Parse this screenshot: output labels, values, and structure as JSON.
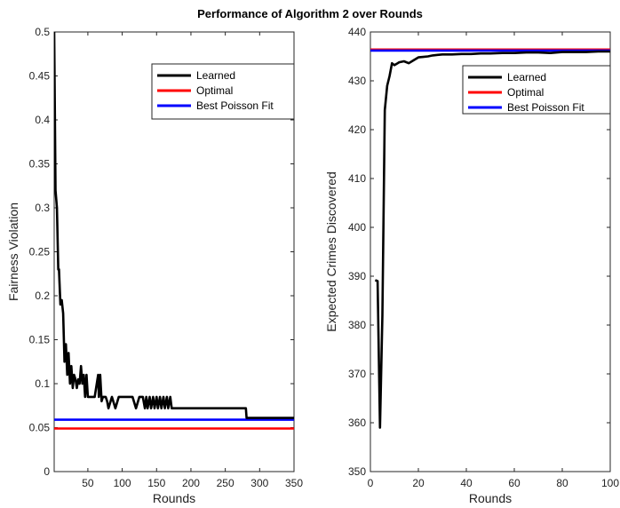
{
  "title": "Performance of Algorithm 2 over Rounds",
  "colors": {
    "learned": "#000000",
    "optimal": "#ff0000",
    "poisson": "#0000ff"
  },
  "chart_data": [
    {
      "type": "line",
      "xlabel": "Rounds",
      "ylabel": "Fairness Violation",
      "xlim": [
        1,
        350
      ],
      "ylim": [
        0,
        0.5
      ],
      "xticks": [
        50,
        100,
        150,
        200,
        250,
        300,
        350
      ],
      "yticks": [
        0,
        0.05,
        0.1,
        0.15,
        0.2,
        0.25,
        0.3,
        0.35,
        0.4,
        0.45,
        0.5
      ],
      "legend_position": "top-right",
      "series": [
        {
          "name": "Learned",
          "color": "#000000",
          "x": [
            1,
            3,
            5,
            7,
            8,
            10,
            12,
            14,
            16,
            18,
            20,
            22,
            24,
            26,
            28,
            30,
            32,
            34,
            36,
            38,
            40,
            42,
            44,
            46,
            48,
            50,
            55,
            60,
            65,
            66,
            68,
            70,
            72,
            74,
            76,
            78,
            80,
            85,
            90,
            95,
            100,
            105,
            110,
            115,
            120,
            125,
            130,
            133,
            135,
            137,
            140,
            142,
            145,
            147,
            150,
            152,
            155,
            157,
            160,
            162,
            165,
            167,
            170,
            172,
            175,
            180,
            200,
            220,
            240,
            260,
            280,
            281,
            283,
            300,
            320,
            350
          ],
          "y": [
            0.5,
            0.32,
            0.3,
            0.23,
            0.23,
            0.19,
            0.195,
            0.18,
            0.125,
            0.145,
            0.11,
            0.135,
            0.1,
            0.12,
            0.095,
            0.11,
            0.105,
            0.095,
            0.105,
            0.1,
            0.12,
            0.1,
            0.11,
            0.085,
            0.11,
            0.085,
            0.085,
            0.085,
            0.11,
            0.085,
            0.11,
            0.08,
            0.085,
            0.085,
            0.085,
            0.08,
            0.072,
            0.085,
            0.072,
            0.085,
            0.085,
            0.085,
            0.085,
            0.085,
            0.072,
            0.085,
            0.085,
            0.072,
            0.085,
            0.072,
            0.085,
            0.072,
            0.085,
            0.072,
            0.085,
            0.072,
            0.085,
            0.072,
            0.085,
            0.072,
            0.085,
            0.072,
            0.085,
            0.072,
            0.072,
            0.072,
            0.072,
            0.072,
            0.072,
            0.072,
            0.072,
            0.061,
            0.061,
            0.061,
            0.061,
            0.061
          ]
        },
        {
          "name": "Optimal",
          "color": "#ff0000",
          "x": [
            1,
            350
          ],
          "y": [
            0.049,
            0.049
          ]
        },
        {
          "name": "Best Poisson Fit",
          "color": "#0000ff",
          "x": [
            1,
            350
          ],
          "y": [
            0.059,
            0.059
          ]
        }
      ]
    },
    {
      "type": "line",
      "xlabel": "Rounds",
      "ylabel": "Expected Crimes Discovered",
      "xlim": [
        0,
        100
      ],
      "ylim": [
        350,
        440
      ],
      "xticks": [
        0,
        20,
        40,
        60,
        80,
        100
      ],
      "yticks": [
        350,
        360,
        370,
        380,
        390,
        400,
        410,
        420,
        430,
        440
      ],
      "legend_position": "top-right",
      "series": [
        {
          "name": "Learned",
          "color": "#000000",
          "x": [
            2,
            3,
            4,
            5,
            6,
            7,
            8,
            9,
            10,
            11,
            12,
            14,
            16,
            18,
            20,
            22,
            24,
            26,
            28,
            30,
            34,
            38,
            42,
            46,
            50,
            55,
            60,
            65,
            70,
            75,
            80,
            85,
            90,
            95,
            100
          ],
          "y": [
            389.2,
            389.0,
            359.0,
            382,
            424,
            429,
            431,
            433.6,
            433.2,
            433.5,
            433.8,
            434,
            433.6,
            434.2,
            434.8,
            434.9,
            435.0,
            435.2,
            435.3,
            435.4,
            435.4,
            435.5,
            435.5,
            435.6,
            435.6,
            435.7,
            435.7,
            435.8,
            435.8,
            435.7,
            435.9,
            435.9,
            435.9,
            436.0,
            436.0
          ]
        },
        {
          "name": "Optimal",
          "color": "#ff0000",
          "x": [
            0,
            100
          ],
          "y": [
            436.4,
            436.4
          ]
        },
        {
          "name": "Best Poisson Fit",
          "color": "#0000ff",
          "x": [
            0,
            100
          ],
          "y": [
            436.2,
            436.2
          ]
        }
      ]
    }
  ]
}
